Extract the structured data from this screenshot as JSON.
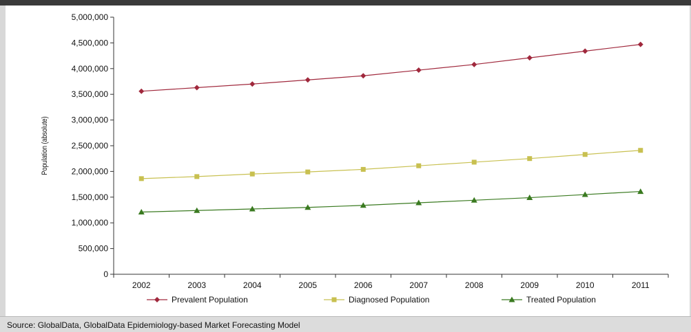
{
  "chart_data": {
    "type": "line",
    "title": "",
    "xlabel": "",
    "ylabel": "Population (absolute)",
    "x": [
      2002,
      2003,
      2004,
      2005,
      2006,
      2007,
      2008,
      2009,
      2010,
      2011
    ],
    "ylim": [
      0,
      5000000
    ],
    "yticks": [
      0,
      500000,
      1000000,
      1500000,
      2000000,
      2500000,
      3000000,
      3500000,
      4000000,
      4500000,
      5000000
    ],
    "ytick_labels": [
      "0",
      "500,000",
      "1,000,000",
      "1,500,000",
      "2,000,000",
      "2,500,000",
      "3,000,000",
      "3,500,000",
      "4,000,000",
      "4,500,000",
      "5,000,000"
    ],
    "grid": false,
    "legend_position": "bottom",
    "series": [
      {
        "name": "Prevalent Population",
        "color": "#a0283c",
        "marker": "diamond",
        "values": [
          3560000,
          3630000,
          3700000,
          3780000,
          3860000,
          3970000,
          4080000,
          4210000,
          4340000,
          4470000
        ]
      },
      {
        "name": "Diagnosed Population",
        "color": "#c8c050",
        "marker": "square",
        "values": [
          1860000,
          1900000,
          1950000,
          1990000,
          2040000,
          2110000,
          2180000,
          2250000,
          2330000,
          2410000
        ]
      },
      {
        "name": "Treated Population",
        "color": "#3a7a20",
        "marker": "triangle",
        "values": [
          1210000,
          1240000,
          1270000,
          1300000,
          1340000,
          1390000,
          1440000,
          1490000,
          1550000,
          1610000
        ]
      }
    ]
  },
  "footer": {
    "source": "Source: GlobalData, GlobalData Epidemiology-based Market Forecasting Model"
  }
}
